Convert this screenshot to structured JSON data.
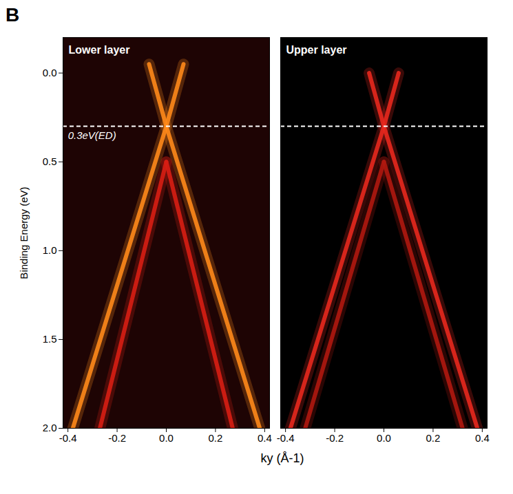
{
  "panel_label": "B",
  "x_label": "ky (Å-1)",
  "chart_data": [
    {
      "type": "line",
      "title": "Lower layer",
      "y_label": "Binding Energy (eV)",
      "xlim": [
        -0.42,
        0.42
      ],
      "xticks": [
        -0.4,
        -0.2,
        {
          "value": 0,
          "label": "0.0"
        },
        0.2,
        0.4
      ],
      "ylim": [
        2.0,
        -0.2
      ],
      "yticks": [
        {
          "value": 0,
          "label": "0.0"
        },
        0.5,
        {
          "value": 1,
          "label": "1.0"
        },
        1.5,
        {
          "value": 2,
          "label": "2.0"
        }
      ],
      "series": [
        {
          "color": "#ff8a1a",
          "x": [
            -0.38,
            -0.19,
            0,
            0.07
          ],
          "values": [
            2.0,
            1.15,
            0.3,
            -0.05
          ]
        },
        {
          "color": "#ff8a1a",
          "x": [
            0.38,
            0.19,
            0,
            -0.07
          ],
          "values": [
            2.0,
            1.15,
            0.3,
            -0.05
          ]
        },
        {
          "color": "#d81e14",
          "x": [
            -0.27,
            -0.135,
            0
          ],
          "values": [
            2.0,
            1.25,
            0.5
          ]
        },
        {
          "color": "#d81e14",
          "x": [
            0.27,
            0.135,
            0
          ],
          "values": [
            2.0,
            1.25,
            0.5
          ]
        }
      ],
      "annotations": [
        {
          "text": "0.3eV(ED)",
          "x": -0.4,
          "y": 0.3
        }
      ],
      "hlines": [
        {
          "y": 0.3,
          "color": "#ffffff",
          "line_style": "dashed"
        }
      ]
    },
    {
      "type": "line",
      "title": "Upper layer",
      "tick_labels": "x",
      "xlim": [
        -0.42,
        0.42
      ],
      "xticks": [
        -0.4,
        -0.2,
        {
          "value": 0,
          "label": "0.0"
        },
        0.2,
        0.4
      ],
      "ylim": [
        2.0,
        -0.2
      ],
      "series": [
        {
          "color": "#e8281e",
          "x": [
            -0.38,
            -0.19,
            0,
            0.06
          ],
          "values": [
            2.0,
            1.15,
            0.3,
            0.0
          ]
        },
        {
          "color": "#e8281e",
          "x": [
            0.38,
            0.19,
            0,
            -0.06
          ],
          "values": [
            2.0,
            1.15,
            0.3,
            0.0
          ]
        },
        {
          "color": "#b01810",
          "x": [
            -0.32,
            -0.16,
            0
          ],
          "values": [
            2.0,
            1.25,
            0.5
          ]
        },
        {
          "color": "#b01810",
          "x": [
            0.32,
            0.16,
            0
          ],
          "values": [
            2.0,
            1.25,
            0.5
          ]
        }
      ],
      "hlines": [
        {
          "y": 0.3,
          "color": "#ffffff",
          "line_style": "dashed"
        }
      ]
    }
  ]
}
